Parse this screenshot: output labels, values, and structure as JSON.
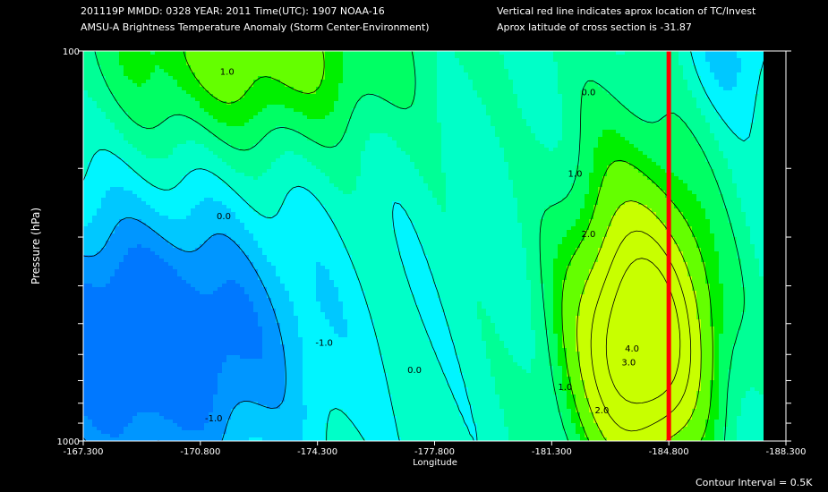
{
  "header": {
    "line1": "201119P  MMDD: 0328 YEAR: 2011 Time(UTC): 1907 NOAA-16",
    "line2": "AMSU-A Brightness Temperature Anomaly (Storm Center-Environment)",
    "line3": "Vertical red line indicates aprox location of TC/Invest",
    "line4": "Aprox latitude of cross section is -31.87"
  },
  "footer": {
    "contour_interval": "Contour Interval = 0.5K"
  },
  "colors": {
    "marker": "#ff0000",
    "bands": [
      "#0078ff",
      "#0096ff",
      "#00c8ff",
      "#00f5ff",
      "#00ffc8",
      "#00ff96",
      "#00ff64",
      "#00f000",
      "#64ff00",
      "#c8ff00"
    ]
  },
  "chart_data": {
    "type": "contour",
    "xlabel": "Longitude",
    "ylabel": "Pressure (hPa)",
    "x_ticks": [
      "-167.300",
      "-170.800",
      "-174.300",
      "-177.800",
      "-181.300",
      "-184.800",
      "-188.300"
    ],
    "y_ticks": [
      "100",
      "1000"
    ],
    "xlim": [
      -167.3,
      -188.3
    ],
    "ylim": [
      1000,
      100
    ],
    "y_scale": "log",
    "tc_longitude": -184.8,
    "contour_labels": [
      {
        "text": "1.0",
        "lon": -171.6,
        "p": 115
      },
      {
        "text": "0.0",
        "lon": -182.4,
        "p": 130
      },
      {
        "text": "0.0",
        "lon": -171.5,
        "p": 270
      },
      {
        "text": "1.0",
        "lon": -182.0,
        "p": 210
      },
      {
        "text": "2.0",
        "lon": -182.4,
        "p": 300
      },
      {
        "text": "-1.0",
        "lon": -171.2,
        "p": 890
      },
      {
        "text": "-1.0",
        "lon": -174.5,
        "p": 570
      },
      {
        "text": "0.0",
        "lon": -177.2,
        "p": 670
      },
      {
        "text": "1.0",
        "lon": -181.7,
        "p": 740
      },
      {
        "text": "2.0",
        "lon": -182.8,
        "p": 850
      },
      {
        "text": "3.0",
        "lon": -183.6,
        "p": 640
      },
      {
        "text": "4.0",
        "lon": -183.7,
        "p": 590
      }
    ]
  }
}
